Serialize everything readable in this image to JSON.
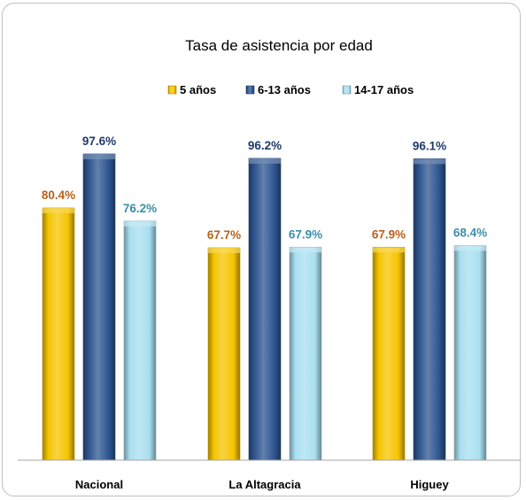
{
  "chart_data": {
    "type": "bar",
    "title": "Tasa de asistencia por edad",
    "categories": [
      "Nacional",
      "La Altagracia",
      "Higuey"
    ],
    "series": [
      {
        "name": "5 años",
        "values": [
          80.4,
          67.7,
          67.9
        ],
        "labels": [
          "80.4%",
          "67.7%",
          "67.9%"
        ],
        "color": "#f5c400",
        "label_color": "#b8621b"
      },
      {
        "name": "6-13 años",
        "values": [
          97.6,
          96.2,
          96.1
        ],
        "labels": [
          "97.6%",
          "96.2%",
          "96.1%"
        ],
        "color": "#2f5690",
        "label_color": "#1f3a6e"
      },
      {
        "name": "14-17 años",
        "values": [
          76.2,
          67.9,
          68.4
        ],
        "labels": [
          "76.2%",
          "67.9%",
          "68.4%"
        ],
        "color": "#a9dff0",
        "label_color": "#3b8faa"
      }
    ],
    "xlabel": "",
    "ylabel": "",
    "ylim": [
      0,
      110
    ],
    "grid": false,
    "legend_position": "top"
  }
}
